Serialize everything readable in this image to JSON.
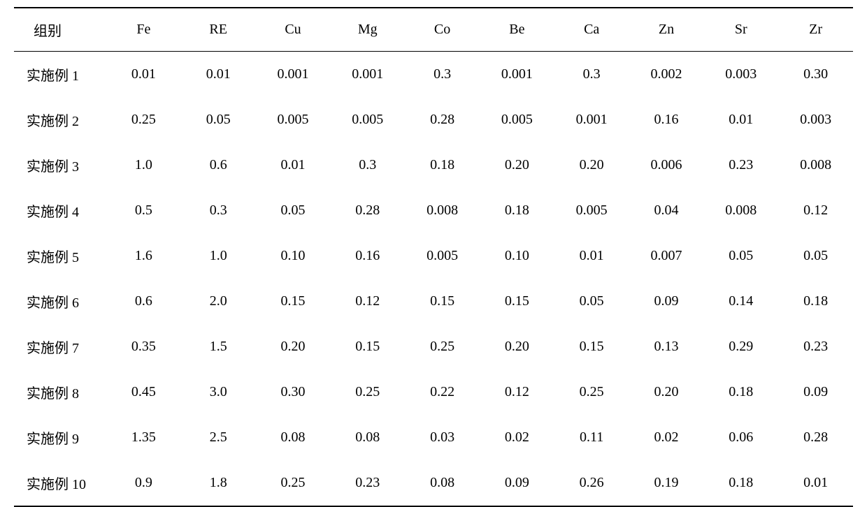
{
  "table": {
    "columns": [
      "组别",
      "Fe",
      "RE",
      "Cu",
      "Mg",
      "Co",
      "Be",
      "Ca",
      "Zn",
      "Sr",
      "Zr"
    ],
    "rows": [
      [
        "实施例 1",
        "0.01",
        "0.01",
        "0.001",
        "0.001",
        "0.3",
        "0.001",
        "0.3",
        "0.002",
        "0.003",
        "0.30"
      ],
      [
        "实施例 2",
        "0.25",
        "0.05",
        "0.005",
        "0.005",
        "0.28",
        "0.005",
        "0.001",
        "0.16",
        "0.01",
        "0.003"
      ],
      [
        "实施例 3",
        "1.0",
        "0.6",
        "0.01",
        "0.3",
        "0.18",
        "0.20",
        "0.20",
        "0.006",
        "0.23",
        "0.008"
      ],
      [
        "实施例 4",
        "0.5",
        "0.3",
        "0.05",
        "0.28",
        "0.008",
        "0.18",
        "0.005",
        "0.04",
        "0.008",
        "0.12"
      ],
      [
        "实施例 5",
        "1.6",
        "1.0",
        "0.10",
        "0.16",
        "0.005",
        "0.10",
        "0.01",
        "0.007",
        "0.05",
        "0.05"
      ],
      [
        "实施例 6",
        "0.6",
        "2.0",
        "0.15",
        "0.12",
        "0.15",
        "0.15",
        "0.05",
        "0.09",
        "0.14",
        "0.18"
      ],
      [
        "实施例 7",
        "0.35",
        "1.5",
        "0.20",
        "0.15",
        "0.25",
        "0.20",
        "0.15",
        "0.13",
        "0.29",
        "0.23"
      ],
      [
        "实施例 8",
        "0.45",
        "3.0",
        "0.30",
        "0.25",
        "0.22",
        "0.12",
        "0.25",
        "0.20",
        "0.18",
        "0.09"
      ],
      [
        "实施例 9",
        "1.35",
        "2.5",
        "0.08",
        "0.08",
        "0.03",
        "0.02",
        "0.11",
        "0.02",
        "0.06",
        "0.28"
      ],
      [
        "实施例 10",
        "0.9",
        "1.8",
        "0.25",
        "0.23",
        "0.08",
        "0.09",
        "0.26",
        "0.19",
        "0.18",
        "0.01"
      ]
    ],
    "header_fontsize": 20,
    "cell_fontsize": 20,
    "border_color": "#000000",
    "background_color": "#ffffff",
    "text_color": "#000000",
    "column_widths": [
      "11%",
      "8.9%",
      "8.9%",
      "8.9%",
      "8.9%",
      "8.9%",
      "8.9%",
      "8.9%",
      "8.9%",
      "8.9%",
      "8.9%"
    ]
  }
}
